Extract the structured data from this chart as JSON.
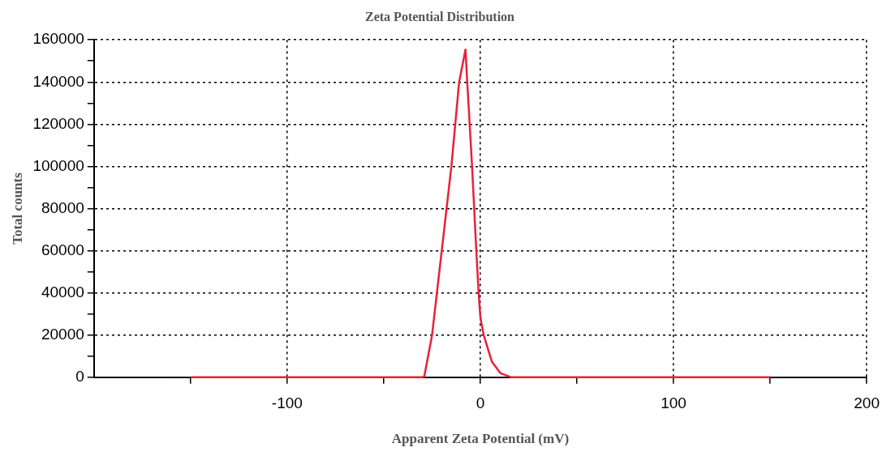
{
  "chart_data": {
    "type": "line",
    "title": "Zeta Potential Distribution",
    "xlabel": "Apparent Zeta Potential (mV)",
    "ylabel": "Total counts",
    "x": [
      -150,
      -30,
      -29,
      -25,
      -20,
      -15,
      -11,
      -7.7,
      -6.8,
      -4.3,
      -2.1,
      -0.9,
      0,
      1.7,
      6,
      10.3,
      16,
      150
    ],
    "series": [
      {
        "color": "#e8213a",
        "values": [
          0,
          0,
          500,
          20000,
          60000,
          100000,
          140000,
          155400,
          140000,
          100000,
          60000,
          40000,
          28400,
          20000,
          7300,
          2000,
          0,
          0
        ]
      }
    ],
    "xlim": [
      -200,
      200
    ],
    "xticks": [
      {
        "value": -150,
        "label": null
      },
      -100,
      {
        "value": -50,
        "label": null
      },
      0,
      {
        "value": 50,
        "label": null
      },
      100,
      {
        "value": 150,
        "label": null
      },
      200
    ],
    "ylim": [
      0,
      160000
    ],
    "yticks": [
      0,
      {
        "value": 10000,
        "label": null
      },
      20000,
      {
        "value": 30000,
        "label": null
      },
      40000,
      {
        "value": 50000,
        "label": null
      },
      60000,
      {
        "value": 70000,
        "label": null
      },
      80000,
      {
        "value": 90000,
        "label": null
      },
      100000,
      {
        "value": 110000,
        "label": null
      },
      120000,
      {
        "value": 130000,
        "label": null
      },
      140000,
      {
        "value": 150000,
        "label": null
      },
      160000
    ],
    "grid": true,
    "legend": false,
    "marker": "none",
    "line_style": "solid"
  }
}
